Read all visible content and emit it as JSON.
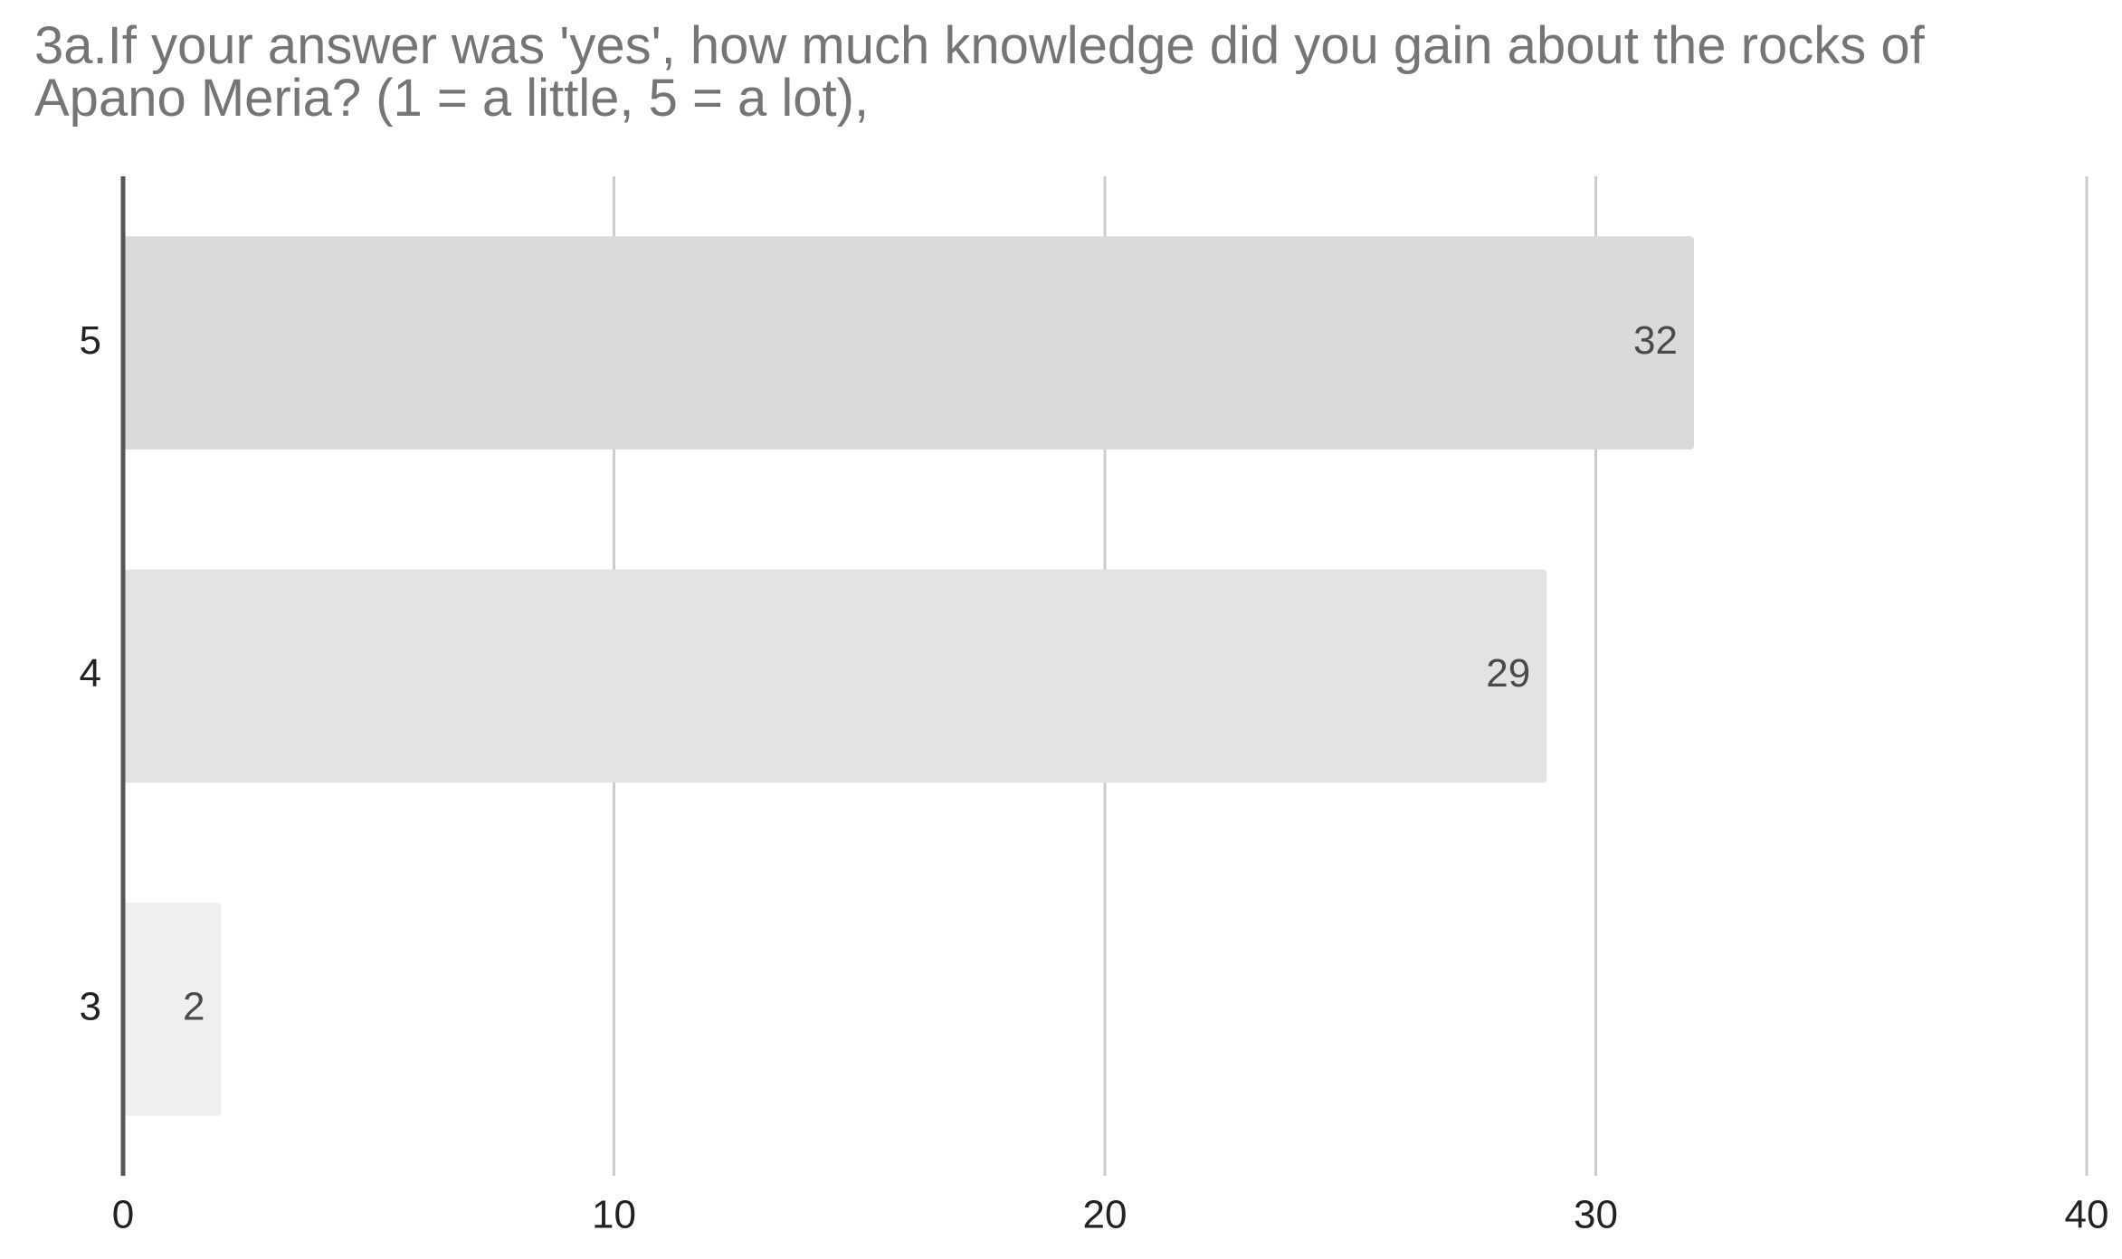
{
  "chart_data": {
    "type": "bar",
    "orientation": "horizontal",
    "title": "3a.If your answer was 'yes', how much knowledge did you gain about the rocks of\nApano Meria? (1 = a little, 5 = a lot),",
    "categories": [
      "5",
      "4",
      "3"
    ],
    "values": [
      32,
      29,
      2
    ],
    "data_labels": [
      "32",
      "29",
      "2"
    ],
    "xlim": [
      0,
      40
    ],
    "x_ticks": [
      0,
      10,
      20,
      30,
      40
    ],
    "x_tick_labels": [
      "0",
      "10",
      "20",
      "30",
      "40"
    ],
    "grid": true,
    "legend": "none",
    "bar_colors": [
      "#dadada",
      "#e3e3e3",
      "#efefef"
    ],
    "colors": {
      "grid": "#cccccc",
      "axis": "#555555",
      "title": "#757575"
    }
  }
}
